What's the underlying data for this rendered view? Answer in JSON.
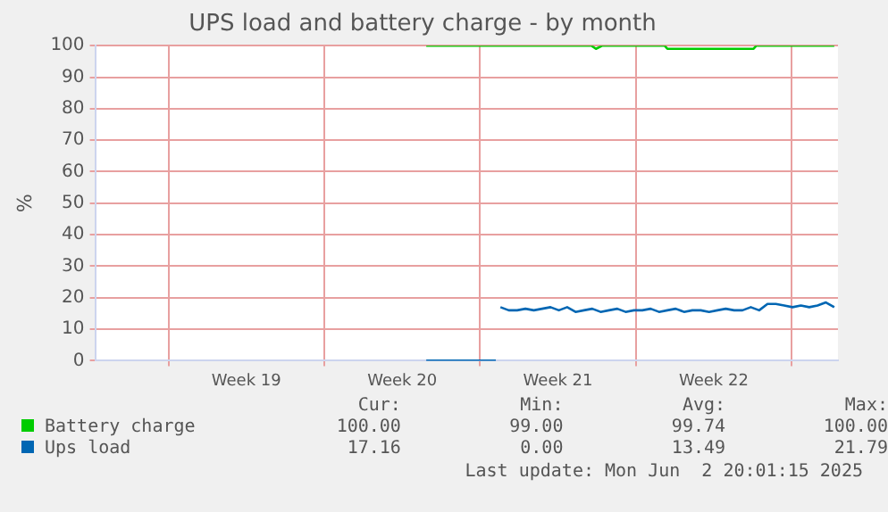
{
  "chart_data": {
    "type": "line",
    "title": "UPS load and battery charge - by month",
    "ylabel": "%",
    "xlim": [
      "2025-05-01T17:00",
      "2025-06-04T02:00"
    ],
    "xticks": [
      {
        "value": "2025-05-05T00:00",
        "label": null
      },
      {
        "value": "2025-05-08T12:00",
        "label": "Week 19"
      },
      {
        "value": "2025-05-12T00:00",
        "label": null
      },
      {
        "value": "2025-05-15T12:00",
        "label": "Week 20"
      },
      {
        "value": "2025-05-19T00:00",
        "label": null
      },
      {
        "value": "2025-05-22T12:00",
        "label": "Week 21"
      },
      {
        "value": "2025-05-26T00:00",
        "label": null
      },
      {
        "value": "2025-05-29T12:00",
        "label": "Week 22"
      },
      {
        "value": "2025-06-02T00:00",
        "label": null
      }
    ],
    "ylim": [
      0,
      100
    ],
    "yticks": [
      0,
      10,
      20,
      30,
      40,
      50,
      60,
      70,
      80,
      90,
      100
    ],
    "grid": true,
    "legend": "bottom",
    "marker": "none",
    "line_style": "solid",
    "series": [
      {
        "name": "Battery charge",
        "color": "#00cc00",
        "x": [
          "2025-05-16T14:00",
          "2025-05-24T00:00",
          "2025-05-24T05:00",
          "2025-05-24T12:00",
          "2025-05-27T07:00",
          "2025-05-27T10:00",
          "2025-05-31T07:00",
          "2025-05-31T10:00",
          "2025-06-03T22:00"
        ],
        "values": [
          100,
          100,
          99,
          100,
          100,
          99,
          99,
          100,
          100
        ]
      },
      {
        "name": "Ups load",
        "color": "#0066b3",
        "x": [
          "2025-05-16T14:00",
          "2025-05-19T17:00",
          "2025-05-19T19:00",
          "2025-05-19T22:00",
          "2025-05-20T07:00",
          "2025-05-20T16:00",
          "2025-05-21T01:00",
          "2025-05-21T10:00",
          "2025-05-21T19:00",
          "2025-05-22T04:00",
          "2025-05-22T13:00",
          "2025-05-22T22:00",
          "2025-05-23T07:00",
          "2025-05-23T16:00",
          "2025-05-24T01:00",
          "2025-05-24T10:00",
          "2025-05-24T19:00",
          "2025-05-25T04:00",
          "2025-05-25T13:00",
          "2025-05-25T22:00",
          "2025-05-26T07:00",
          "2025-05-26T16:00",
          "2025-05-27T01:00",
          "2025-05-27T10:00",
          "2025-05-27T19:00",
          "2025-05-28T04:00",
          "2025-05-28T13:00",
          "2025-05-28T22:00",
          "2025-05-29T07:00",
          "2025-05-29T16:00",
          "2025-05-30T01:00",
          "2025-05-30T10:00",
          "2025-05-30T19:00",
          "2025-05-31T04:00",
          "2025-05-31T13:00",
          "2025-05-31T22:00",
          "2025-06-01T07:00",
          "2025-06-01T16:00",
          "2025-06-02T01:00",
          "2025-06-02T10:00",
          "2025-06-02T19:00",
          "2025-06-03T04:00",
          "2025-06-03T13:00",
          "2025-06-03T22:00"
        ],
        "values": [
          0,
          0,
          null,
          17,
          16,
          16,
          16.5,
          16,
          16.5,
          17,
          16,
          17,
          15.5,
          16,
          16.5,
          15.5,
          16,
          16.5,
          15.5,
          16,
          16,
          16.5,
          15.5,
          16,
          16.5,
          15.5,
          16,
          16,
          15.5,
          16,
          16.5,
          16,
          16,
          17,
          16,
          18,
          18,
          17.5,
          17,
          17.5,
          17,
          17.5,
          18.5,
          17
        ]
      }
    ],
    "annotations": [
      "Cur:",
      "Min:",
      "Avg:",
      "Max:",
      "100.00",
      "99.00",
      "99.74",
      "100.00",
      "17.16",
      "0.00",
      "13.49",
      "21.79",
      "Last update: Mon Jun  2 20:01:15 2025"
    ]
  }
}
